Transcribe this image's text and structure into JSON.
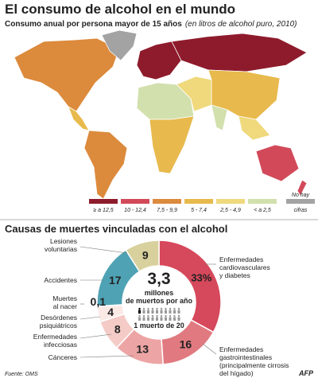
{
  "title": "El consumo de alcohol en el mundo",
  "subtitle": "Consumo anual por persona mayor de 15 años",
  "subtitle_note": "(en litros de alcohol puro, 2010)",
  "map": {
    "legend": [
      {
        "label": "≥ a 12,5",
        "color": "#8e1b2c"
      },
      {
        "label": "10 - 12,4",
        "color": "#d24a5a"
      },
      {
        "label": "7,5 - 9,9",
        "color": "#dc8a3c"
      },
      {
        "label": "5 - 7,4",
        "color": "#e8b94c"
      },
      {
        "label": "2,5 - 4,9",
        "color": "#efd97c"
      },
      {
        "label": "< a 2,5",
        "color": "#d2e0ad"
      },
      {
        "label": [
          "No hay",
          "cifras"
        ],
        "color": "#a3a3a3"
      }
    ]
  },
  "chart_data": {
    "type": "donut",
    "title": "Causas de muertes vinculadas con el alcohol",
    "center_value": "3,3",
    "center_text": [
      "millones",
      "de muertos por año"
    ],
    "center_note": "1 muerto de 20",
    "categories": [
      [
        "Enfermedades",
        "cardiovasculares",
        "y diabetes"
      ],
      [
        "Enfermedades",
        "gastrointestinales",
        "(principalmente cirrosis",
        "del hígado)"
      ],
      [
        "Cánceres"
      ],
      [
        "Enfermedades",
        "infecciosas"
      ],
      [
        "Desórdenes",
        "psiquiátricos"
      ],
      [
        "Muertes",
        "al nacer"
      ],
      [
        "Accidentes"
      ],
      [
        "Lesiones",
        "voluntarias"
      ]
    ],
    "values": [
      33,
      16,
      13,
      8,
      4,
      0.1,
      17,
      9
    ],
    "value_labels": [
      "33%",
      "16",
      "13",
      "8",
      "4",
      "0,1",
      "17",
      "9"
    ],
    "colors": [
      "#d6485b",
      "#e07a80",
      "#eca5a4",
      "#f4cbc6",
      "#fbe9e6",
      "#ffffff",
      "#4fa2b4",
      "#d8d19d"
    ]
  },
  "source": "Fuente: OMS",
  "credit": "AFP"
}
